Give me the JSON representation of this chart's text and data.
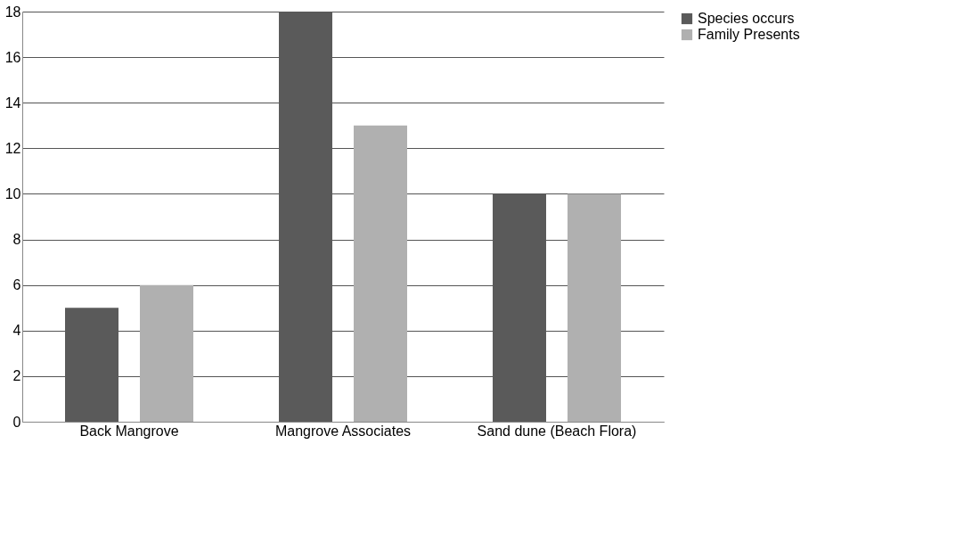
{
  "chart_data": {
    "type": "bar",
    "categories": [
      "Back Mangrove",
      "Mangrove Associates",
      "Sand dune (Beach Flora)"
    ],
    "series": [
      {
        "name": "Species occurs",
        "color": "#5a5a5a",
        "values": [
          5,
          18,
          10
        ]
      },
      {
        "name": "Family Presents",
        "color": "#b0b0b0",
        "values": [
          6,
          13,
          10
        ]
      }
    ],
    "ylim": [
      0,
      18
    ],
    "yticks": [
      0,
      2,
      4,
      6,
      8,
      10,
      12,
      14,
      16,
      18
    ],
    "grid": "y",
    "legend": "right"
  }
}
